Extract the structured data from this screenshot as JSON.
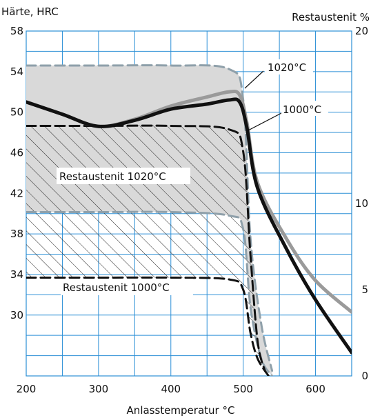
{
  "chart_data": {
    "type": "line",
    "title": "",
    "ylabel_left": "Härte, HRC",
    "ylabel_right": "Restaustenit %",
    "xlabel": "Anlasstemperatur °C",
    "x_ticks": [
      "200",
      "300",
      "400",
      "500",
      "600"
    ],
    "y_left_ticks": [
      "30",
      "34",
      "38",
      "42",
      "46",
      "50",
      "54",
      "58"
    ],
    "y_right_ticks": [
      "0",
      "5",
      "10",
      "20"
    ],
    "xlim": [
      200,
      650
    ],
    "ylim_left": [
      24,
      58
    ],
    "ylim_right": [
      0,
      20
    ],
    "grid": true,
    "colors": {
      "hardness_1020": "#9a9a9a",
      "hardness_1000": "#111111",
      "ra_1020_fill": "#d9d9d9",
      "ra_1020_line": "#8fa0aa",
      "ra_1000_line": "#111111",
      "grid": "#2b8fd6"
    },
    "series": [
      {
        "name": "1020°C",
        "axis": "left",
        "style": "solid",
        "x": [
          200,
          250,
          300,
          350,
          400,
          450,
          480,
          495,
          505,
          520,
          560,
          600,
          650
        ],
        "y": [
          51,
          49.8,
          48.6,
          49.3,
          50.6,
          51.5,
          52.0,
          51.7,
          49.0,
          43.0,
          37.5,
          33.4,
          30.3
        ]
      },
      {
        "name": "1000°C",
        "axis": "left",
        "style": "solid",
        "x": [
          200,
          250,
          300,
          350,
          400,
          450,
          480,
          495,
          505,
          520,
          560,
          600,
          650
        ],
        "y": [
          51,
          49.8,
          48.6,
          49.2,
          50.3,
          50.8,
          51.2,
          51.0,
          48.5,
          42.5,
          36.5,
          31.5,
          26.3
        ]
      },
      {
        "name": "Restaustenit 1020°C",
        "axis": "right",
        "style": "dashed-band",
        "x_upper": [
          200,
          300,
          400,
          480,
          500,
          510,
          525,
          540
        ],
        "y_upper": [
          18,
          18,
          18,
          17.8,
          16,
          8,
          3,
          0.3
        ],
        "x_lower": [
          200,
          300,
          400,
          480,
          500,
          510,
          525,
          540
        ],
        "y_lower": [
          9.5,
          9.5,
          9.5,
          9.3,
          8.5,
          4,
          1,
          0
        ]
      },
      {
        "name": "Restaustenit 1000°C",
        "axis": "right",
        "style": "dashed-band",
        "x_upper": [
          200,
          300,
          400,
          480,
          500,
          510,
          520,
          530
        ],
        "y_upper": [
          14.5,
          14.5,
          14.5,
          14.3,
          13,
          7,
          2,
          0.3
        ],
        "x_lower": [
          200,
          300,
          400,
          480,
          500,
          510,
          520,
          535
        ],
        "y_lower": [
          5.7,
          5.7,
          5.7,
          5.6,
          5,
          2.5,
          1,
          0
        ]
      }
    ],
    "annotations": [
      {
        "text": "1020°C"
      },
      {
        "text": "1000°C"
      },
      {
        "text": "Restaustenit 1020°C"
      },
      {
        "text": "Restaustenit 1000°C"
      }
    ]
  }
}
